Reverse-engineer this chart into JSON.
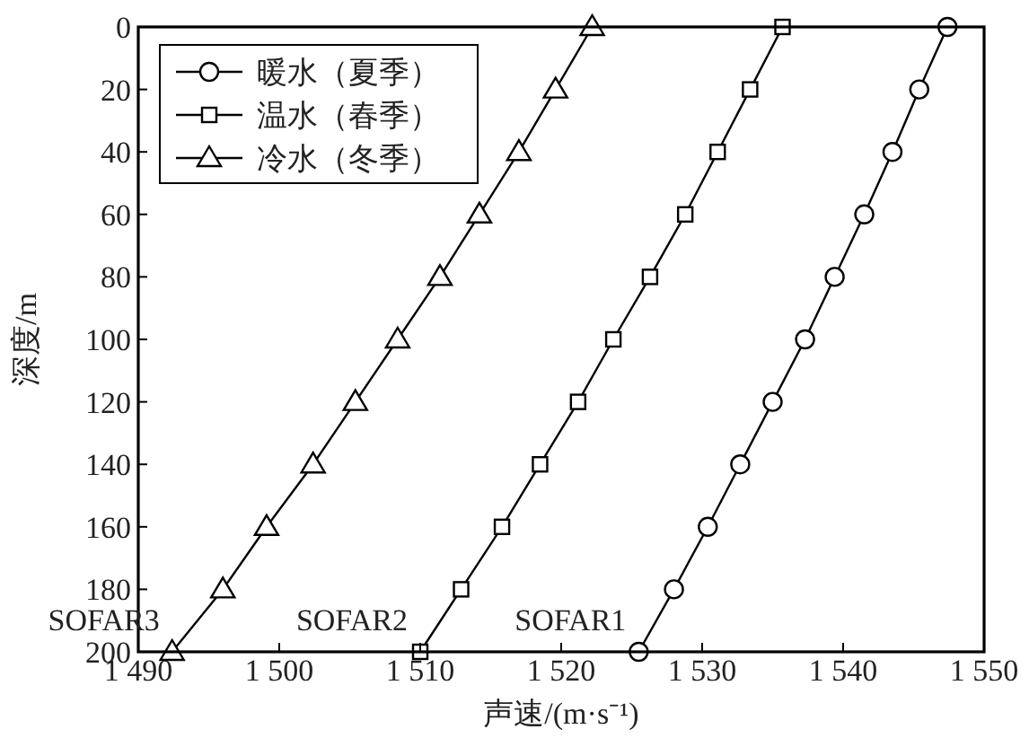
{
  "chart_data": {
    "type": "line",
    "xlabel": "声速/(m·s⁻¹)",
    "ylabel": "深度/m",
    "xlim": [
      1490,
      1550
    ],
    "xticks": [
      {
        "value": 1490,
        "label": "1 490"
      },
      {
        "value": 1500,
        "label": "1 500"
      },
      {
        "value": 1510,
        "label": "1 510"
      },
      {
        "value": 1520,
        "label": "1 520"
      },
      {
        "value": 1530,
        "label": "1 530"
      },
      {
        "value": 1540,
        "label": "1 540"
      },
      {
        "value": 1550,
        "label": "1 550"
      }
    ],
    "ylim": [
      200,
      0
    ],
    "yticks": [
      0,
      20,
      40,
      60,
      80,
      100,
      120,
      140,
      160,
      180,
      200
    ],
    "grid": false,
    "legend": "top left",
    "line_style": "solid",
    "series": [
      {
        "name": "暖水（夏季）",
        "color": "#000000",
        "marker": "circle",
        "x": [
          1547.4,
          1545.4,
          1543.5,
          1541.5,
          1539.4,
          1537.3,
          1535.0,
          1532.7,
          1530.4,
          1528.0,
          1525.5
        ],
        "values": [
          0,
          20,
          40,
          60,
          80,
          100,
          120,
          140,
          160,
          180,
          200
        ]
      },
      {
        "name": "温水（春季）",
        "color": "#000000",
        "marker": "square",
        "x": [
          1535.7,
          1533.4,
          1531.1,
          1528.8,
          1526.3,
          1523.7,
          1521.2,
          1518.5,
          1515.8,
          1512.9,
          1510.0
        ],
        "values": [
          0,
          20,
          40,
          60,
          80,
          100,
          120,
          140,
          160,
          180,
          200
        ]
      },
      {
        "name": "冷水（冬季）",
        "color": "#000000",
        "marker": "triangle",
        "x": [
          1522.2,
          1519.6,
          1517.0,
          1514.2,
          1511.4,
          1508.4,
          1505.4,
          1502.4,
          1499.1,
          1496.0,
          1492.4
        ],
        "values": [
          0,
          20,
          40,
          60,
          80,
          100,
          120,
          140,
          160,
          180,
          200
        ]
      }
    ],
    "annotations": [
      {
        "text": "SOFAR1",
        "x": 1525.5,
        "y": 200
      },
      {
        "text": "SOFAR2",
        "x": 1510.0,
        "y": 200
      },
      {
        "text": "SOFAR3",
        "x": 1492.4,
        "y": 200
      }
    ]
  }
}
